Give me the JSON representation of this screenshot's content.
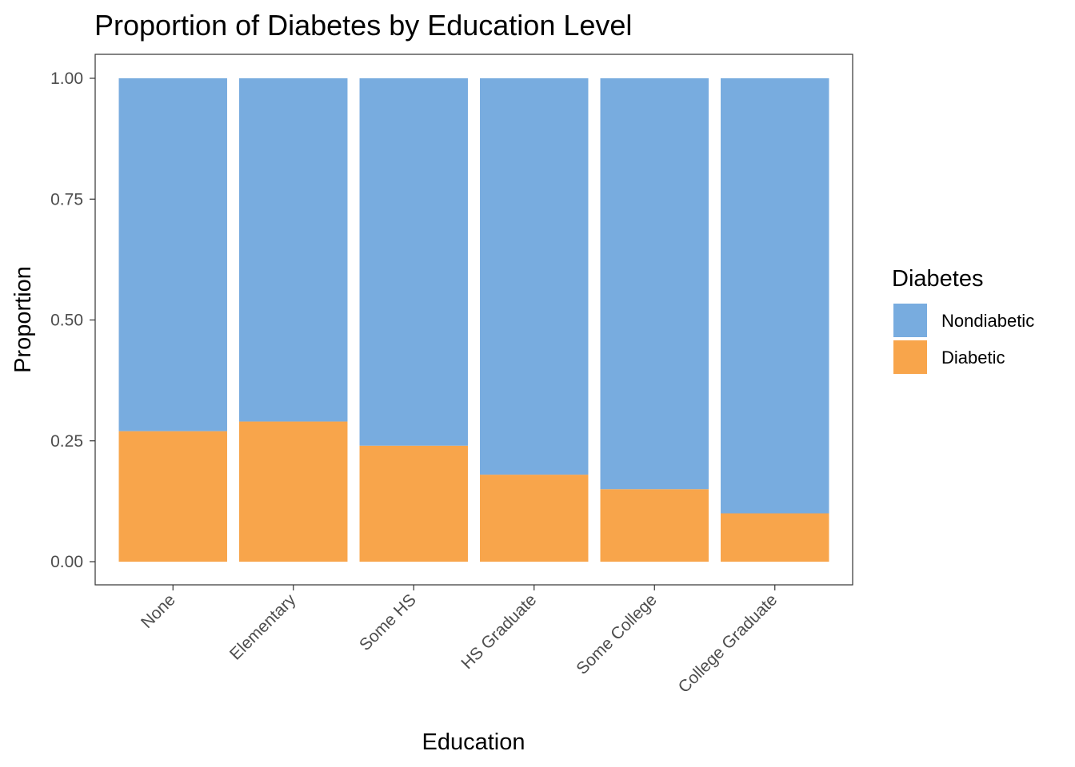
{
  "chart_data": {
    "type": "bar",
    "stacked": true,
    "title": "Proportion of Diabetes by Education Level",
    "xlabel": "Education",
    "ylabel": "Proportion",
    "ylim": [
      0,
      1
    ],
    "yticks": [
      "0.00",
      "0.25",
      "0.50",
      "0.75",
      "1.00"
    ],
    "ytick_values": [
      0,
      0.25,
      0.5,
      0.75,
      1.0
    ],
    "grid": false,
    "categories": [
      "None",
      "Elementary",
      "Some HS",
      "HS Graduate",
      "Some College",
      "College Graduate"
    ],
    "series": [
      {
        "name": "Diabetic",
        "color": "#f8a54b",
        "values": [
          0.27,
          0.29,
          0.24,
          0.18,
          0.15,
          0.1
        ]
      },
      {
        "name": "Nondiabetic",
        "color": "#78acdf",
        "values": [
          0.73,
          0.71,
          0.76,
          0.82,
          0.85,
          0.9
        ]
      }
    ],
    "legend": {
      "title": "Diabetes",
      "position": "right",
      "entries": [
        {
          "label": "Nondiabetic",
          "color": "#78acdf"
        },
        {
          "label": "Diabetic",
          "color": "#f8a54b"
        }
      ]
    }
  }
}
